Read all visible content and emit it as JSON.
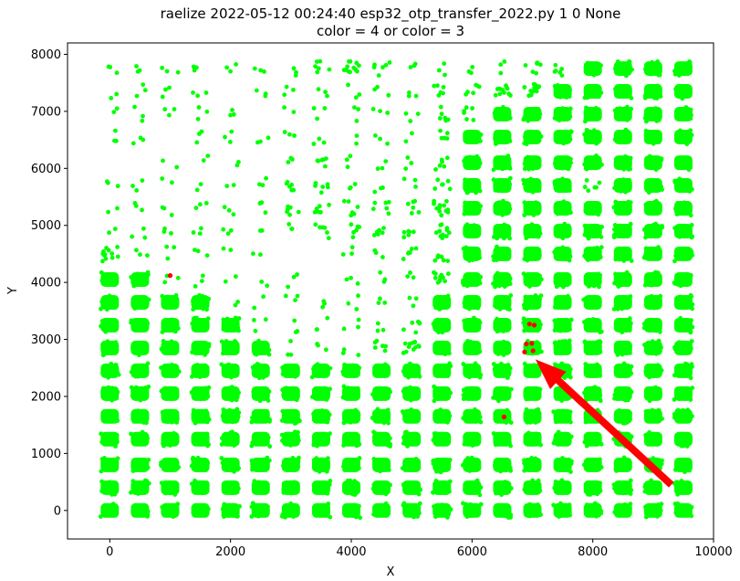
{
  "chart_data": {
    "type": "scatter",
    "title": "raelize 2022-05-12 00:24:40 esp32_otp_transfer_2022.py 1 0 None",
    "subtitle": "color = 4 or color = 3",
    "xlabel": "X",
    "ylabel": "Y",
    "xlim": [
      -700,
      10000
    ],
    "ylim": [
      -500,
      8200
    ],
    "xticks": [
      0,
      2000,
      4000,
      6000,
      8000,
      10000
    ],
    "yticks": [
      0,
      1000,
      2000,
      3000,
      4000,
      5000,
      6000,
      7000,
      8000
    ],
    "grid": false,
    "legend": "none",
    "grid_columns_x": [
      0,
      500,
      1000,
      1500,
      2000,
      2500,
      3000,
      3500,
      4000,
      4500,
      5000,
      5500,
      6000,
      6500,
      7000,
      7500,
      8000,
      8500,
      9000,
      9500
    ],
    "grid_rows_y": [
      0,
      400,
      800,
      1250,
      1650,
      2050,
      2450,
      2850,
      3250,
      3650,
      4050,
      4500,
      4900,
      5300,
      5700,
      6100,
      6550,
      6950,
      7350,
      7750
    ],
    "series": [
      {
        "color": "#00ff00",
        "cluster_density_rows": [
          [
            5,
            5,
            5,
            5,
            5,
            5,
            5,
            5,
            5,
            5,
            5,
            5,
            5,
            5,
            5,
            5,
            5,
            5,
            5,
            5
          ],
          [
            5,
            5,
            5,
            5,
            5,
            5,
            5,
            5,
            5,
            5,
            5,
            5,
            5,
            5,
            5,
            5,
            5,
            5,
            5,
            5
          ],
          [
            5,
            5,
            5,
            5,
            5,
            5,
            5,
            5,
            5,
            5,
            5,
            5,
            5,
            5,
            5,
            5,
            5,
            5,
            5,
            5
          ],
          [
            5,
            5,
            5,
            5,
            5,
            5,
            5,
            5,
            5,
            5,
            5,
            5,
            5,
            5,
            5,
            5,
            5,
            5,
            5,
            5
          ],
          [
            5,
            5,
            5,
            5,
            5,
            5,
            5,
            5,
            5,
            5,
            5,
            5,
            5,
            5,
            5,
            5,
            5,
            5,
            5,
            5
          ],
          [
            5,
            5,
            5,
            5,
            5,
            5,
            5,
            5,
            5,
            5,
            5,
            5,
            5,
            5,
            5,
            5,
            5,
            5,
            5,
            5
          ],
          [
            5,
            5,
            5,
            5,
            5,
            5,
            5,
            5,
            5,
            5,
            5,
            5,
            5,
            5,
            5,
            5,
            5,
            5,
            5,
            5
          ],
          [
            5,
            5,
            5,
            5,
            5,
            5,
            2,
            2,
            2,
            3,
            4,
            5,
            5,
            5,
            5,
            5,
            5,
            5,
            5,
            5
          ],
          [
            5,
            5,
            5,
            5,
            5,
            2,
            2,
            2,
            2,
            2,
            3,
            5,
            5,
            5,
            5,
            5,
            5,
            5,
            5,
            5
          ],
          [
            5,
            5,
            5,
            5,
            1,
            1,
            2,
            2,
            2,
            2,
            2,
            5,
            5,
            5,
            5,
            5,
            5,
            5,
            5,
            5
          ],
          [
            5,
            5,
            2,
            2,
            1,
            1,
            2,
            0,
            2,
            2,
            2,
            4,
            5,
            5,
            5,
            5,
            5,
            5,
            5,
            5
          ],
          [
            4,
            2,
            2,
            2,
            1,
            1,
            0,
            0,
            2,
            2,
            3,
            3,
            5,
            5,
            5,
            5,
            5,
            5,
            5,
            5
          ],
          [
            1,
            2,
            2,
            2,
            2,
            1,
            2,
            3,
            3,
            3,
            3,
            4,
            5,
            5,
            5,
            5,
            5,
            5,
            5,
            5
          ],
          [
            1,
            2,
            2,
            2,
            2,
            2,
            3,
            3,
            3,
            3,
            3,
            4,
            5,
            5,
            5,
            5,
            5,
            5,
            5,
            5
          ],
          [
            2,
            2,
            1,
            1,
            1,
            2,
            3,
            3,
            2,
            2,
            2,
            3,
            5,
            5,
            5,
            5,
            3,
            5,
            5,
            5
          ],
          [
            0,
            0,
            1,
            1,
            1,
            0,
            2,
            3,
            2,
            2,
            2,
            3,
            5,
            5,
            5,
            5,
            5,
            5,
            5,
            5
          ],
          [
            2,
            2,
            0,
            2,
            2,
            2,
            2,
            2,
            1,
            2,
            1,
            3,
            5,
            5,
            5,
            5,
            5,
            5,
            5,
            5
          ],
          [
            1,
            2,
            2,
            2,
            2,
            0,
            1,
            2,
            2,
            2,
            2,
            3,
            3,
            5,
            5,
            5,
            5,
            5,
            5,
            5
          ],
          [
            1,
            2,
            2,
            2,
            0,
            2,
            2,
            2,
            2,
            2,
            2,
            3,
            3,
            4,
            4,
            5,
            5,
            5,
            5,
            5
          ],
          [
            2,
            2,
            2,
            2,
            2,
            2,
            2,
            3,
            4,
            3,
            2,
            2,
            2,
            2,
            3,
            3,
            5,
            5,
            5,
            5
          ]
        ]
      },
      {
        "color": "#ff0000",
        "points": [
          [
            1000,
            4120
          ],
          [
            6950,
            3270
          ],
          [
            7030,
            3250
          ],
          [
            6900,
            2920
          ],
          [
            6990,
            2930
          ],
          [
            6870,
            2780
          ],
          [
            7010,
            2800
          ],
          [
            6530,
            1640
          ]
        ]
      }
    ],
    "annotation": {
      "type": "arrow",
      "color": "#ff0000",
      "from": [
        9300,
        450
      ],
      "to": [
        7050,
        2650
      ]
    }
  }
}
